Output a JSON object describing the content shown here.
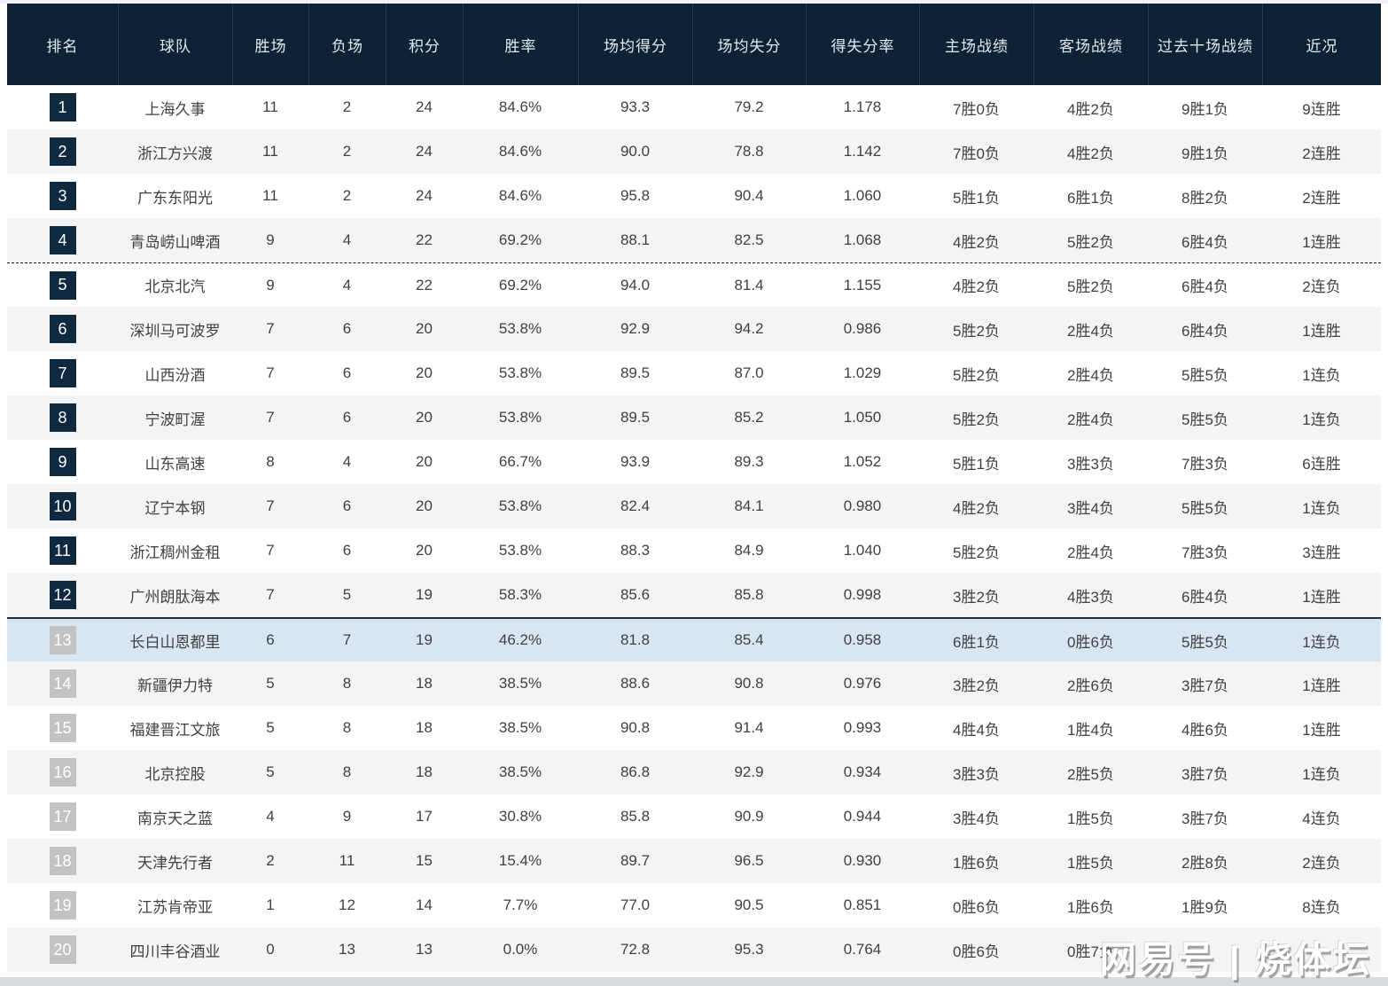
{
  "header": {
    "columns": [
      "排名",
      "球队",
      "胜场",
      "负场",
      "积分",
      "胜率",
      "场均得分",
      "场均失分",
      "得失分率",
      "主场战绩",
      "客场战绩",
      "过去十场战绩",
      "近况"
    ]
  },
  "rows": [
    {
      "rank": "1",
      "team": "上海久事",
      "wins": "11",
      "losses": "2",
      "points": "24",
      "win_pct": "84.6%",
      "ppg": "93.3",
      "opp_ppg": "79.2",
      "ratio": "1.178",
      "home": "7胜0负",
      "away": "4胜2负",
      "last10": "9胜1负",
      "streak": "9连胜"
    },
    {
      "rank": "2",
      "team": "浙江方兴渡",
      "wins": "11",
      "losses": "2",
      "points": "24",
      "win_pct": "84.6%",
      "ppg": "90.0",
      "opp_ppg": "78.8",
      "ratio": "1.142",
      "home": "7胜0负",
      "away": "4胜2负",
      "last10": "9胜1负",
      "streak": "2连胜"
    },
    {
      "rank": "3",
      "team": "广东东阳光",
      "wins": "11",
      "losses": "2",
      "points": "24",
      "win_pct": "84.6%",
      "ppg": "95.8",
      "opp_ppg": "90.4",
      "ratio": "1.060",
      "home": "5胜1负",
      "away": "6胜1负",
      "last10": "8胜2负",
      "streak": "2连胜"
    },
    {
      "rank": "4",
      "team": "青岛崂山啤酒",
      "wins": "9",
      "losses": "4",
      "points": "22",
      "win_pct": "69.2%",
      "ppg": "88.1",
      "opp_ppg": "82.5",
      "ratio": "1.068",
      "home": "4胜2负",
      "away": "5胜2负",
      "last10": "6胜4负",
      "streak": "1连胜"
    },
    {
      "rank": "5",
      "team": "北京北汽",
      "wins": "9",
      "losses": "4",
      "points": "22",
      "win_pct": "69.2%",
      "ppg": "94.0",
      "opp_ppg": "81.4",
      "ratio": "1.155",
      "home": "4胜2负",
      "away": "5胜2负",
      "last10": "6胜4负",
      "streak": "2连负"
    },
    {
      "rank": "6",
      "team": "深圳马可波罗",
      "wins": "7",
      "losses": "6",
      "points": "20",
      "win_pct": "53.8%",
      "ppg": "92.9",
      "opp_ppg": "94.2",
      "ratio": "0.986",
      "home": "5胜2负",
      "away": "2胜4负",
      "last10": "6胜4负",
      "streak": "1连胜"
    },
    {
      "rank": "7",
      "team": "山西汾酒",
      "wins": "7",
      "losses": "6",
      "points": "20",
      "win_pct": "53.8%",
      "ppg": "89.5",
      "opp_ppg": "87.0",
      "ratio": "1.029",
      "home": "5胜2负",
      "away": "2胜4负",
      "last10": "5胜5负",
      "streak": "1连负"
    },
    {
      "rank": "8",
      "team": "宁波町渥",
      "wins": "7",
      "losses": "6",
      "points": "20",
      "win_pct": "53.8%",
      "ppg": "89.5",
      "opp_ppg": "85.2",
      "ratio": "1.050",
      "home": "5胜2负",
      "away": "2胜4负",
      "last10": "5胜5负",
      "streak": "1连负"
    },
    {
      "rank": "9",
      "team": "山东高速",
      "wins": "8",
      "losses": "4",
      "points": "20",
      "win_pct": "66.7%",
      "ppg": "93.9",
      "opp_ppg": "89.3",
      "ratio": "1.052",
      "home": "5胜1负",
      "away": "3胜3负",
      "last10": "7胜3负",
      "streak": "6连胜"
    },
    {
      "rank": "10",
      "team": "辽宁本钢",
      "wins": "7",
      "losses": "6",
      "points": "20",
      "win_pct": "53.8%",
      "ppg": "82.4",
      "opp_ppg": "84.1",
      "ratio": "0.980",
      "home": "4胜2负",
      "away": "3胜4负",
      "last10": "5胜5负",
      "streak": "1连负"
    },
    {
      "rank": "11",
      "team": "浙江稠州金租",
      "wins": "7",
      "losses": "6",
      "points": "20",
      "win_pct": "53.8%",
      "ppg": "88.3",
      "opp_ppg": "84.9",
      "ratio": "1.040",
      "home": "5胜2负",
      "away": "2胜4负",
      "last10": "7胜3负",
      "streak": "3连胜"
    },
    {
      "rank": "12",
      "team": "广州朗肽海本",
      "wins": "7",
      "losses": "5",
      "points": "19",
      "win_pct": "58.3%",
      "ppg": "85.6",
      "opp_ppg": "85.8",
      "ratio": "0.998",
      "home": "3胜2负",
      "away": "4胜3负",
      "last10": "6胜4负",
      "streak": "1连胜"
    },
    {
      "rank": "13",
      "team": "长白山恩都里",
      "wins": "6",
      "losses": "7",
      "points": "19",
      "win_pct": "46.2%",
      "ppg": "81.8",
      "opp_ppg": "85.4",
      "ratio": "0.958",
      "home": "6胜1负",
      "away": "0胜6负",
      "last10": "5胜5负",
      "streak": "1连负"
    },
    {
      "rank": "14",
      "team": "新疆伊力特",
      "wins": "5",
      "losses": "8",
      "points": "18",
      "win_pct": "38.5%",
      "ppg": "88.6",
      "opp_ppg": "90.8",
      "ratio": "0.976",
      "home": "3胜2负",
      "away": "2胜6负",
      "last10": "3胜7负",
      "streak": "1连胜"
    },
    {
      "rank": "15",
      "team": "福建晋江文旅",
      "wins": "5",
      "losses": "8",
      "points": "18",
      "win_pct": "38.5%",
      "ppg": "90.8",
      "opp_ppg": "91.4",
      "ratio": "0.993",
      "home": "4胜4负",
      "away": "1胜4负",
      "last10": "4胜6负",
      "streak": "1连胜"
    },
    {
      "rank": "16",
      "team": "北京控股",
      "wins": "5",
      "losses": "8",
      "points": "18",
      "win_pct": "38.5%",
      "ppg": "86.8",
      "opp_ppg": "92.9",
      "ratio": "0.934",
      "home": "3胜3负",
      "away": "2胜5负",
      "last10": "3胜7负",
      "streak": "1连负"
    },
    {
      "rank": "17",
      "team": "南京天之蓝",
      "wins": "4",
      "losses": "9",
      "points": "17",
      "win_pct": "30.8%",
      "ppg": "85.8",
      "opp_ppg": "90.9",
      "ratio": "0.944",
      "home": "3胜4负",
      "away": "1胜5负",
      "last10": "3胜7负",
      "streak": "4连负"
    },
    {
      "rank": "18",
      "team": "天津先行者",
      "wins": "2",
      "losses": "11",
      "points": "15",
      "win_pct": "15.4%",
      "ppg": "89.7",
      "opp_ppg": "96.5",
      "ratio": "0.930",
      "home": "1胜6负",
      "away": "1胜5负",
      "last10": "2胜8负",
      "streak": "2连负"
    },
    {
      "rank": "19",
      "team": "江苏肯帝亚",
      "wins": "1",
      "losses": "12",
      "points": "14",
      "win_pct": "7.7%",
      "ppg": "77.0",
      "opp_ppg": "90.5",
      "ratio": "0.851",
      "home": "0胜6负",
      "away": "1胜6负",
      "last10": "1胜9负",
      "streak": "8连负"
    },
    {
      "rank": "20",
      "team": "四川丰谷酒业",
      "wins": "0",
      "losses": "13",
      "points": "13",
      "win_pct": "0.0%",
      "ppg": "72.8",
      "opp_ppg": "95.3",
      "ratio": "0.764",
      "home": "0胜6负",
      "away": "0胜7负",
      "last10": "",
      "streak": ""
    }
  ],
  "dividers": {
    "dashed_after_rank": 4,
    "solid_after_rank": 12
  },
  "highlighted_rank": 13,
  "watermark": "网易号 | 烧体坛",
  "colors": {
    "header-bg": "#0d2335",
    "header-divider": "#20405a",
    "header-text": "#e3eaf0",
    "body-text": "#404040",
    "alt-row": "#f4f4f5",
    "highlight-row": "#d8e6f3",
    "badge-navy": "#0f2940",
    "badge-gray": "#c3c3c3"
  }
}
